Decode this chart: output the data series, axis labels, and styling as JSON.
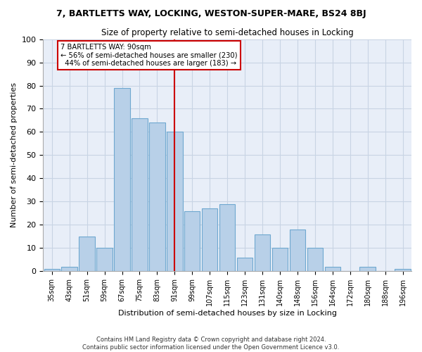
{
  "title": "7, BARTLETTS WAY, LOCKING, WESTON-SUPER-MARE, BS24 8BJ",
  "subtitle": "Size of property relative to semi-detached houses in Locking",
  "xlabel": "Distribution of semi-detached houses by size in Locking",
  "ylabel": "Number of semi-detached properties",
  "categories": [
    "35sqm",
    "43sqm",
    "51sqm",
    "59sqm",
    "67sqm",
    "75sqm",
    "83sqm",
    "91sqm",
    "99sqm",
    "107sqm",
    "115sqm",
    "123sqm",
    "131sqm",
    "140sqm",
    "148sqm",
    "156sqm",
    "164sqm",
    "172sqm",
    "180sqm",
    "188sqm",
    "196sqm"
  ],
  "values": [
    1,
    2,
    15,
    10,
    79,
    66,
    64,
    60,
    26,
    27,
    29,
    6,
    16,
    10,
    18,
    10,
    2,
    0,
    2,
    0,
    1
  ],
  "bar_color": "#b8d0e8",
  "bar_edge_color": "#6fa8d0",
  "property_idx": 7,
  "property_size": "90sqm",
  "pct_smaller": 56,
  "count_smaller": 230,
  "pct_larger": 44,
  "count_larger": 183,
  "box_color": "#ffffff",
  "box_edge_color": "#cc0000",
  "line_color": "#cc0000",
  "grid_color": "#c8d4e4",
  "background_color": "#e8eef8",
  "ylim": [
    0,
    100
  ],
  "title_fontsize": 9,
  "subtitle_fontsize": 8.5,
  "footer1": "Contains HM Land Registry data © Crown copyright and database right 2024.",
  "footer2": "Contains public sector information licensed under the Open Government Licence v3.0."
}
